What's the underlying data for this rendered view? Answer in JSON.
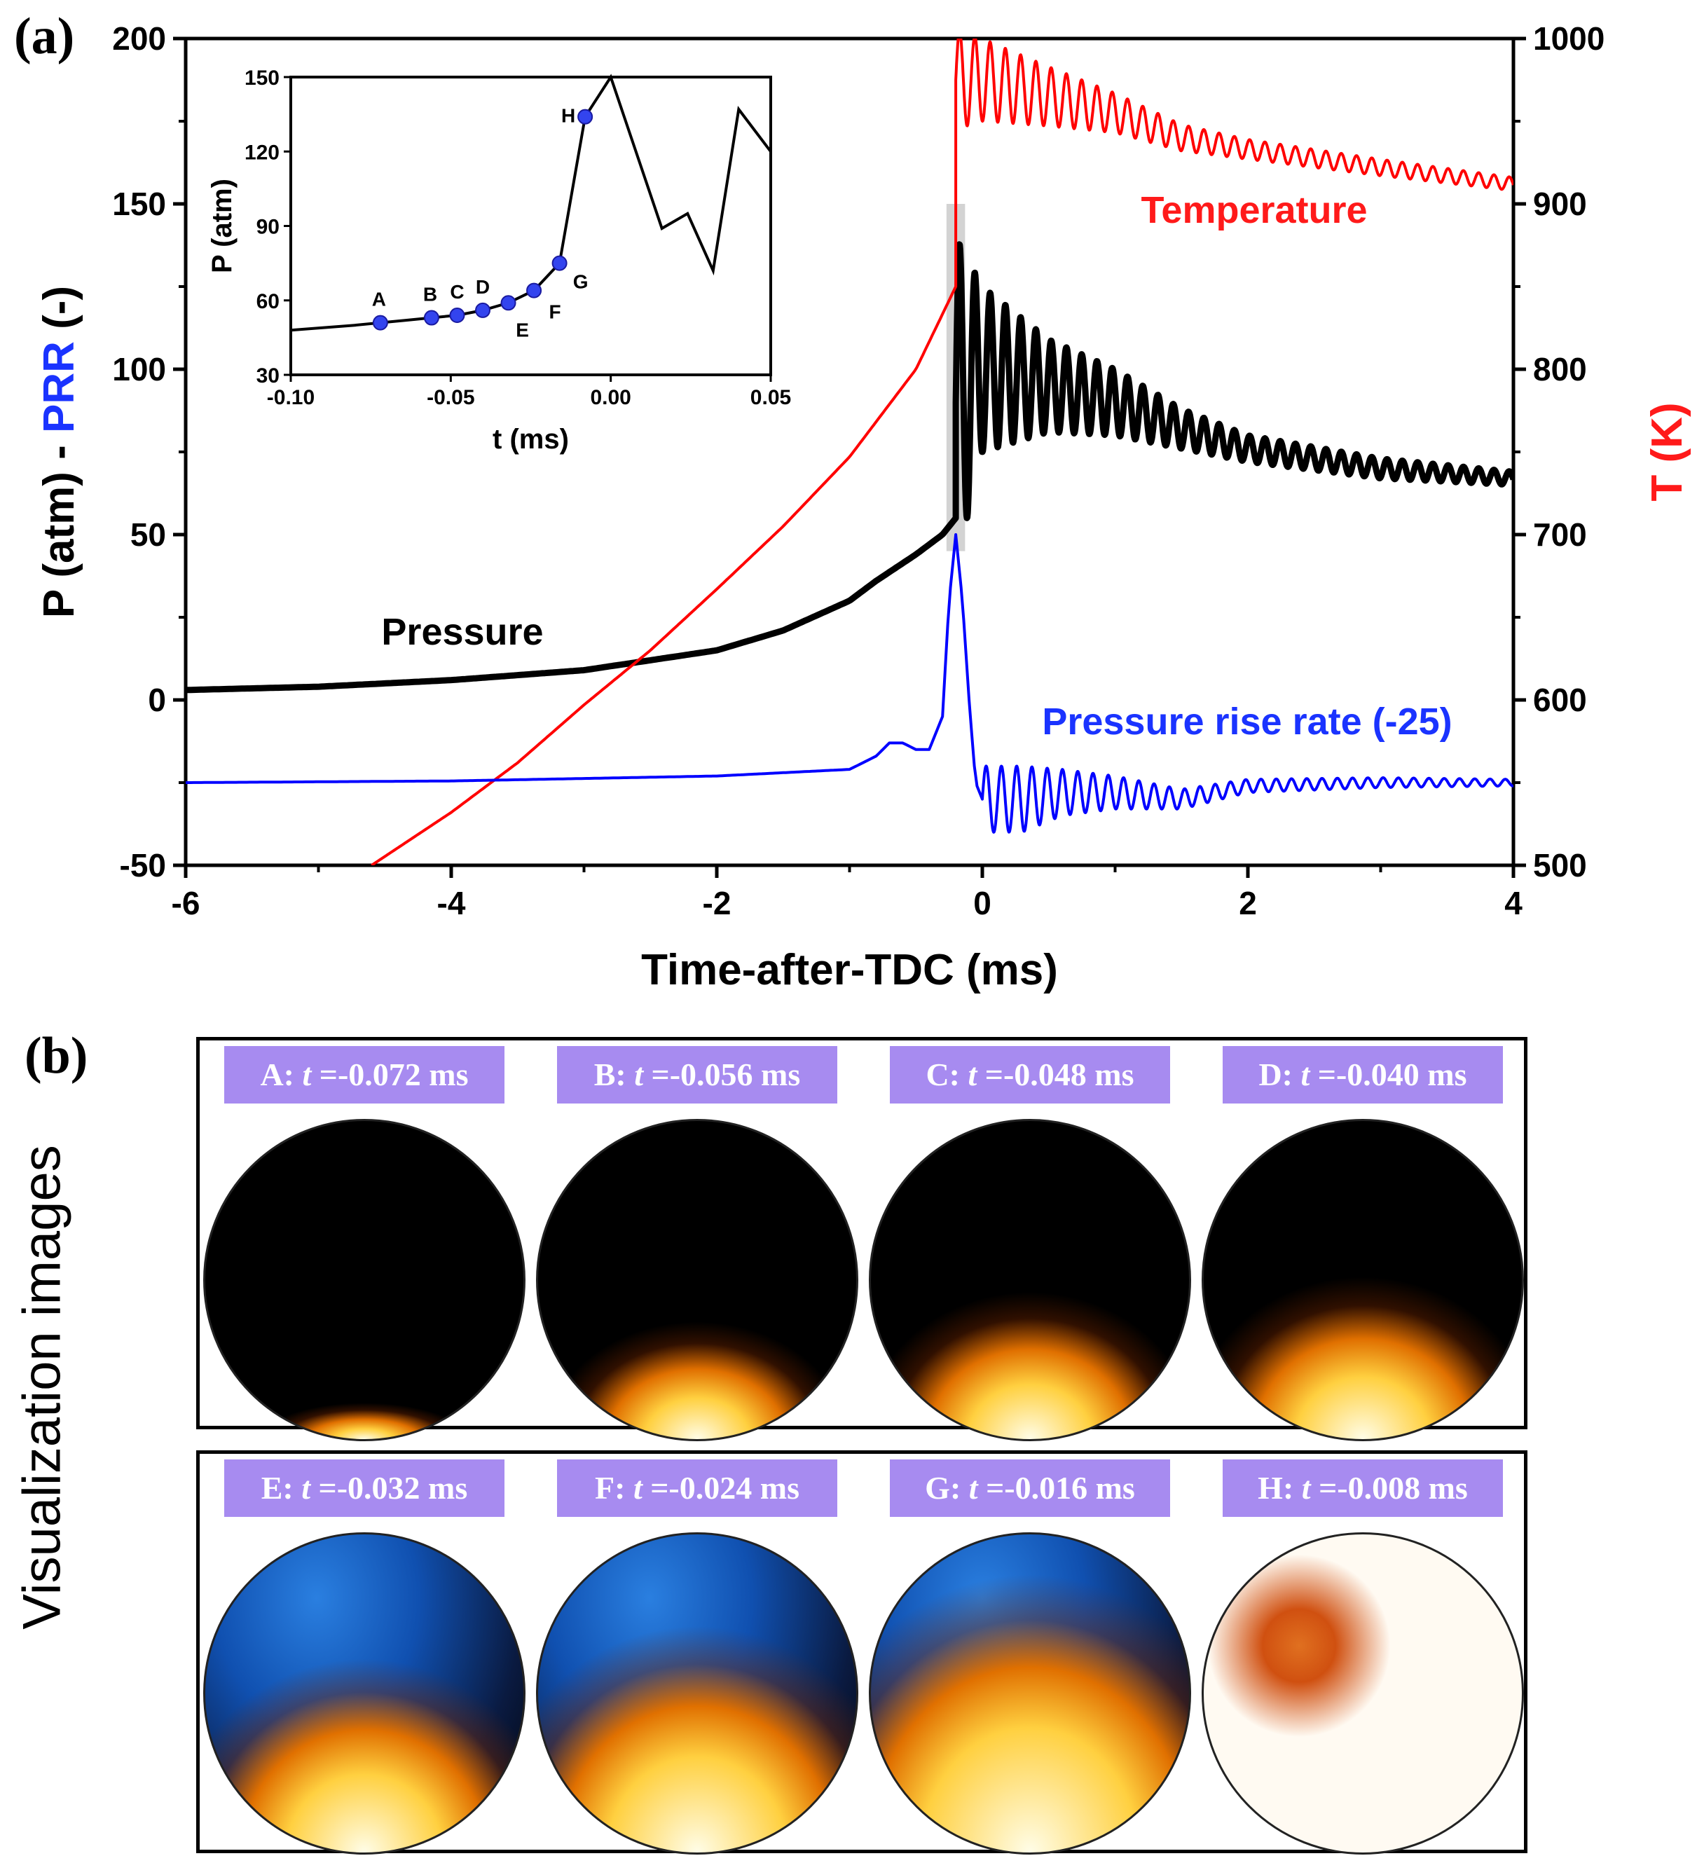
{
  "panels": {
    "a": "(a)",
    "b": "(b)"
  },
  "chart_data": [
    {
      "type": "line",
      "panel": "(a)",
      "xlabel": "Time-after-TDC (ms)",
      "ylabel_left_parts": [
        "P (atm) - ",
        "PRR",
        " (-)"
      ],
      "ylabel_right": "T (K)",
      "xlim": [
        -6,
        4
      ],
      "ylim_left": [
        -50,
        200
      ],
      "ylim_right": [
        500,
        1000
      ],
      "xticks": [
        -6,
        -4,
        -2,
        0,
        2,
        4
      ],
      "yticks_left": [
        -50,
        0,
        50,
        100,
        150,
        200
      ],
      "yticks_right": [
        500,
        600,
        700,
        800,
        900,
        1000
      ],
      "grid": false,
      "annotations": [
        "Pressure",
        "Temperature",
        "Pressure rise rate (-25)"
      ],
      "series": [
        {
          "name": "Pressure",
          "color": "#000000",
          "axis": "left",
          "x": [
            -6,
            -5,
            -4,
            -3,
            -2.5,
            -2,
            -1.5,
            -1,
            -0.8,
            -0.5,
            -0.3,
            -0.2
          ],
          "y": [
            3,
            4,
            6,
            9,
            12,
            15,
            21,
            30,
            36,
            44,
            50,
            55
          ],
          "oscillation_after_ignition": {
            "x": [
              -0.2,
              0,
              0.5,
              1,
              1.5,
              2,
              3,
              4
            ],
            "y": [
              90,
              100,
              95,
              90,
              82,
              76,
              70,
              67
            ],
            "amplitude": [
              50,
              25,
              14,
              10,
              6,
              4,
              3,
              2
            ]
          }
        },
        {
          "name": "Temperature",
          "color": "#ff0000",
          "axis": "right",
          "x": [
            -4.6,
            -4,
            -3.5,
            -3,
            -2.5,
            -2,
            -1.5,
            -1,
            -0.5,
            -0.2
          ],
          "y": [
            500,
            532,
            562,
            597,
            630,
            667,
            705,
            747,
            800,
            850
          ],
          "oscillation_after_ignition": {
            "x": [
              -0.2,
              0,
              0.5,
              1,
              1.5,
              2,
              3,
              4
            ],
            "y": [
              975,
              975,
              965,
              955,
              940,
              933,
              922,
              912
            ],
            "amplitude": [
              30,
              25,
              18,
              12,
              8,
              6,
              5,
              4
            ]
          }
        },
        {
          "name": "Pressure rise rate (-25)",
          "color": "#0000ff",
          "axis": "left",
          "x": [
            -6,
            -4,
            -2,
            -1,
            -0.8,
            -0.7,
            -0.6,
            -0.5,
            -0.4,
            -0.3,
            -0.25,
            -0.2,
            -0.15,
            -0.1,
            -0.05,
            0
          ],
          "y": [
            -25,
            -24.5,
            -23,
            -21,
            -17,
            -13,
            -13,
            -15,
            -15,
            -5,
            30,
            50,
            30,
            0,
            -25,
            -30
          ],
          "oscillation_after_ignition": {
            "x": [
              0,
              0.3,
              0.6,
              1,
              1.5,
              2,
              3,
              4
            ],
            "y": [
              -30,
              -30,
              -28,
              -28,
              -30,
              -26,
              -25,
              -25
            ],
            "amplitude": [
              10,
              10,
              7,
              5,
              3,
              2,
              1.5,
              1
            ]
          }
        }
      ]
    },
    {
      "type": "line",
      "inset": true,
      "xlabel": "t (ms)",
      "ylabel": "P (atm)",
      "xlim": [
        -0.1,
        0.05
      ],
      "ylim": [
        30,
        150
      ],
      "xticks": [
        "-0.10",
        "-0.05",
        "0.00",
        "0.05"
      ],
      "yticks": [
        "30",
        "60",
        "90",
        "120",
        "150"
      ],
      "series": [
        {
          "color": "#000000",
          "x": [
            -0.1,
            -0.09,
            -0.08,
            -0.072,
            -0.064,
            -0.056,
            -0.048,
            -0.04,
            -0.032,
            -0.024,
            -0.016,
            -0.008,
            0.0,
            0.016,
            0.024,
            0.032,
            0.04,
            0.05
          ],
          "y": [
            48,
            49,
            50,
            51,
            52,
            53,
            54,
            56,
            59,
            64,
            75,
            134,
            150,
            89,
            95,
            72,
            137,
            120
          ]
        }
      ],
      "markers": [
        {
          "label": "A",
          "x": -0.072,
          "y": 51
        },
        {
          "label": "B",
          "x": -0.056,
          "y": 53
        },
        {
          "label": "C",
          "x": -0.048,
          "y": 54
        },
        {
          "label": "D",
          "x": -0.04,
          "y": 56
        },
        {
          "label": "E",
          "x": -0.032,
          "y": 59
        },
        {
          "label": "F",
          "x": -0.024,
          "y": 64
        },
        {
          "label": "G",
          "x": -0.016,
          "y": 75
        },
        {
          "label": "H",
          "x": -0.008,
          "y": 134
        }
      ]
    }
  ],
  "visualization": {
    "title": "Visualization images",
    "frames": [
      {
        "id": "A",
        "label_prefix": "A: ",
        "t_symbol": "t",
        "label_value": " =-0.072 ms",
        "fill": 0.05,
        "blue": false
      },
      {
        "id": "B",
        "label_prefix": "B: ",
        "t_symbol": "t",
        "label_value": " =-0.056 ms",
        "fill": 0.35,
        "blue": false
      },
      {
        "id": "C",
        "label_prefix": "C: ",
        "t_symbol": "t",
        "label_value": " =-0.048 ms",
        "fill": 0.45,
        "blue": false
      },
      {
        "id": "D",
        "label_prefix": "D: ",
        "t_symbol": "t",
        "label_value": " =-0.040 ms",
        "fill": 0.5,
        "blue": false
      },
      {
        "id": "E",
        "label_prefix": "E: ",
        "t_symbol": "t",
        "label_value": " =-0.032 ms",
        "fill": 0.6,
        "blue": true
      },
      {
        "id": "F",
        "label_prefix": "F: ",
        "t_symbol": "t",
        "label_value": " =-0.024 ms",
        "fill": 0.7,
        "blue": true
      },
      {
        "id": "G",
        "label_prefix": "G: ",
        "t_symbol": "t",
        "label_value": " =-0.016 ms",
        "fill": 0.85,
        "blue": true
      },
      {
        "id": "H",
        "label_prefix": "H: ",
        "t_symbol": "t",
        "label_value": " =-0.008 ms",
        "fill": 1.0,
        "blue": false
      }
    ]
  }
}
